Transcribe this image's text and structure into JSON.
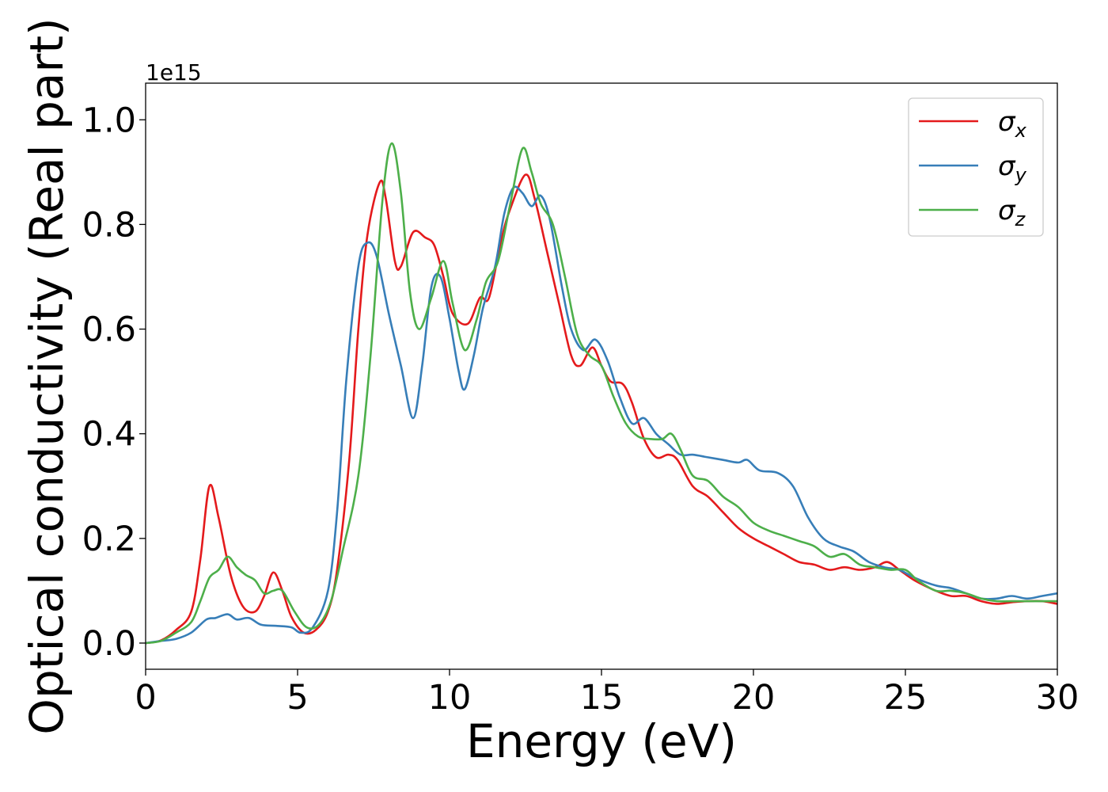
{
  "chart_data": {
    "type": "line",
    "title": "",
    "xlabel": "Energy (eV)",
    "ylabel": "Optical conductivity (Real part)",
    "offset_text": "1e15",
    "xlim": [
      0,
      30
    ],
    "ylim": [
      -0.05,
      1.07
    ],
    "x_ticks": [
      0,
      5,
      10,
      15,
      20,
      25,
      30
    ],
    "x_tick_labels": [
      "0",
      "5",
      "10",
      "15",
      "20",
      "25",
      "30"
    ],
    "y_ticks": [
      0.0,
      0.2,
      0.4,
      0.6,
      0.8,
      1.0
    ],
    "y_tick_labels": [
      "0.0",
      "0.2",
      "0.4",
      "0.6",
      "0.8",
      "1.0"
    ],
    "grid": false,
    "legend_position": "top-right",
    "series": [
      {
        "name": "σx",
        "legend_base": "σ",
        "legend_sub": "x",
        "color": "#e41a1c",
        "points": [
          [
            0,
            0
          ],
          [
            0.5,
            0.005
          ],
          [
            1.0,
            0.025
          ],
          [
            1.5,
            0.06
          ],
          [
            1.8,
            0.16
          ],
          [
            2.1,
            0.3
          ],
          [
            2.4,
            0.24
          ],
          [
            2.8,
            0.13
          ],
          [
            3.2,
            0.07
          ],
          [
            3.6,
            0.06
          ],
          [
            3.9,
            0.09
          ],
          [
            4.2,
            0.135
          ],
          [
            4.5,
            0.1
          ],
          [
            4.8,
            0.05
          ],
          [
            5.2,
            0.02
          ],
          [
            5.6,
            0.025
          ],
          [
            6.0,
            0.06
          ],
          [
            6.3,
            0.14
          ],
          [
            6.7,
            0.35
          ],
          [
            7.0,
            0.6
          ],
          [
            7.3,
            0.78
          ],
          [
            7.7,
            0.88
          ],
          [
            7.9,
            0.85
          ],
          [
            8.2,
            0.73
          ],
          [
            8.4,
            0.72
          ],
          [
            8.8,
            0.785
          ],
          [
            9.2,
            0.775
          ],
          [
            9.5,
            0.76
          ],
          [
            9.8,
            0.7
          ],
          [
            10.1,
            0.63
          ],
          [
            10.6,
            0.61
          ],
          [
            11.0,
            0.66
          ],
          [
            11.3,
            0.66
          ],
          [
            11.7,
            0.77
          ],
          [
            12.0,
            0.83
          ],
          [
            12.5,
            0.895
          ],
          [
            12.8,
            0.85
          ],
          [
            13.2,
            0.75
          ],
          [
            13.6,
            0.65
          ],
          [
            14.0,
            0.55
          ],
          [
            14.3,
            0.53
          ],
          [
            14.7,
            0.565
          ],
          [
            15.0,
            0.53
          ],
          [
            15.3,
            0.5
          ],
          [
            15.7,
            0.495
          ],
          [
            16.0,
            0.46
          ],
          [
            16.4,
            0.39
          ],
          [
            16.8,
            0.355
          ],
          [
            17.2,
            0.36
          ],
          [
            17.5,
            0.35
          ],
          [
            18.0,
            0.3
          ],
          [
            18.5,
            0.28
          ],
          [
            19.0,
            0.25
          ],
          [
            19.5,
            0.22
          ],
          [
            20.0,
            0.2
          ],
          [
            20.5,
            0.185
          ],
          [
            21.0,
            0.17
          ],
          [
            21.5,
            0.155
          ],
          [
            22.0,
            0.15
          ],
          [
            22.5,
            0.14
          ],
          [
            23.0,
            0.145
          ],
          [
            23.5,
            0.14
          ],
          [
            24.0,
            0.145
          ],
          [
            24.4,
            0.155
          ],
          [
            24.8,
            0.14
          ],
          [
            25.3,
            0.12
          ],
          [
            26.0,
            0.1
          ],
          [
            26.5,
            0.09
          ],
          [
            27.0,
            0.09
          ],
          [
            27.5,
            0.08
          ],
          [
            28.0,
            0.075
          ],
          [
            28.5,
            0.078
          ],
          [
            29.0,
            0.08
          ],
          [
            29.5,
            0.08
          ],
          [
            30.0,
            0.075
          ]
        ]
      },
      {
        "name": "σy",
        "legend_base": "σ",
        "legend_sub": "y",
        "color": "#377eb8",
        "points": [
          [
            0,
            0
          ],
          [
            0.5,
            0.004
          ],
          [
            1.0,
            0.008
          ],
          [
            1.5,
            0.02
          ],
          [
            2.0,
            0.045
          ],
          [
            2.3,
            0.048
          ],
          [
            2.7,
            0.055
          ],
          [
            3.0,
            0.045
          ],
          [
            3.4,
            0.048
          ],
          [
            3.8,
            0.035
          ],
          [
            4.3,
            0.033
          ],
          [
            4.8,
            0.03
          ],
          [
            5.1,
            0.02
          ],
          [
            5.5,
            0.03
          ],
          [
            6.0,
            0.1
          ],
          [
            6.3,
            0.25
          ],
          [
            6.6,
            0.5
          ],
          [
            7.0,
            0.72
          ],
          [
            7.3,
            0.765
          ],
          [
            7.6,
            0.74
          ],
          [
            8.0,
            0.63
          ],
          [
            8.4,
            0.53
          ],
          [
            8.8,
            0.43
          ],
          [
            9.1,
            0.53
          ],
          [
            9.4,
            0.68
          ],
          [
            9.7,
            0.7
          ],
          [
            10.0,
            0.62
          ],
          [
            10.3,
            0.52
          ],
          [
            10.5,
            0.485
          ],
          [
            10.8,
            0.55
          ],
          [
            11.1,
            0.64
          ],
          [
            11.5,
            0.72
          ],
          [
            11.8,
            0.82
          ],
          [
            12.1,
            0.87
          ],
          [
            12.4,
            0.86
          ],
          [
            12.7,
            0.835
          ],
          [
            13.0,
            0.855
          ],
          [
            13.3,
            0.81
          ],
          [
            13.7,
            0.68
          ],
          [
            14.0,
            0.6
          ],
          [
            14.4,
            0.56
          ],
          [
            14.8,
            0.58
          ],
          [
            15.2,
            0.54
          ],
          [
            15.6,
            0.47
          ],
          [
            16.0,
            0.42
          ],
          [
            16.4,
            0.43
          ],
          [
            16.8,
            0.4
          ],
          [
            17.2,
            0.38
          ],
          [
            17.6,
            0.36
          ],
          [
            18.0,
            0.36
          ],
          [
            18.5,
            0.355
          ],
          [
            19.0,
            0.35
          ],
          [
            19.5,
            0.345
          ],
          [
            19.8,
            0.35
          ],
          [
            20.2,
            0.33
          ],
          [
            20.8,
            0.325
          ],
          [
            21.3,
            0.3
          ],
          [
            21.8,
            0.24
          ],
          [
            22.3,
            0.2
          ],
          [
            22.8,
            0.185
          ],
          [
            23.3,
            0.175
          ],
          [
            23.8,
            0.155
          ],
          [
            24.3,
            0.145
          ],
          [
            24.8,
            0.14
          ],
          [
            25.3,
            0.125
          ],
          [
            26.0,
            0.11
          ],
          [
            26.5,
            0.105
          ],
          [
            27.0,
            0.095
          ],
          [
            27.5,
            0.085
          ],
          [
            28.0,
            0.085
          ],
          [
            28.5,
            0.09
          ],
          [
            29.0,
            0.085
          ],
          [
            29.5,
            0.09
          ],
          [
            30.0,
            0.095
          ]
        ]
      },
      {
        "name": "σz",
        "legend_base": "σ",
        "legend_sub": "z",
        "color": "#4daf4a",
        "points": [
          [
            0,
            0
          ],
          [
            0.5,
            0.004
          ],
          [
            1.0,
            0.02
          ],
          [
            1.5,
            0.04
          ],
          [
            1.8,
            0.08
          ],
          [
            2.1,
            0.125
          ],
          [
            2.4,
            0.14
          ],
          [
            2.7,
            0.165
          ],
          [
            3.0,
            0.145
          ],
          [
            3.3,
            0.13
          ],
          [
            3.6,
            0.12
          ],
          [
            3.9,
            0.095
          ],
          [
            4.2,
            0.1
          ],
          [
            4.5,
            0.1
          ],
          [
            4.9,
            0.06
          ],
          [
            5.3,
            0.03
          ],
          [
            5.7,
            0.035
          ],
          [
            6.1,
            0.08
          ],
          [
            6.5,
            0.18
          ],
          [
            7.0,
            0.32
          ],
          [
            7.4,
            0.55
          ],
          [
            7.8,
            0.85
          ],
          [
            8.1,
            0.955
          ],
          [
            8.4,
            0.86
          ],
          [
            8.7,
            0.67
          ],
          [
            9.0,
            0.6
          ],
          [
            9.4,
            0.66
          ],
          [
            9.8,
            0.73
          ],
          [
            10.1,
            0.65
          ],
          [
            10.5,
            0.56
          ],
          [
            10.9,
            0.62
          ],
          [
            11.2,
            0.69
          ],
          [
            11.6,
            0.73
          ],
          [
            12.0,
            0.84
          ],
          [
            12.4,
            0.945
          ],
          [
            12.7,
            0.9
          ],
          [
            13.0,
            0.84
          ],
          [
            13.4,
            0.8
          ],
          [
            13.8,
            0.7
          ],
          [
            14.2,
            0.59
          ],
          [
            14.6,
            0.55
          ],
          [
            15.0,
            0.53
          ],
          [
            15.4,
            0.47
          ],
          [
            15.8,
            0.42
          ],
          [
            16.2,
            0.395
          ],
          [
            16.6,
            0.39
          ],
          [
            17.0,
            0.39
          ],
          [
            17.3,
            0.4
          ],
          [
            17.6,
            0.37
          ],
          [
            18.0,
            0.32
          ],
          [
            18.5,
            0.31
          ],
          [
            19.0,
            0.28
          ],
          [
            19.5,
            0.26
          ],
          [
            20.0,
            0.23
          ],
          [
            20.5,
            0.215
          ],
          [
            21.0,
            0.205
          ],
          [
            21.5,
            0.195
          ],
          [
            22.0,
            0.185
          ],
          [
            22.5,
            0.165
          ],
          [
            23.0,
            0.17
          ],
          [
            23.5,
            0.15
          ],
          [
            24.0,
            0.145
          ],
          [
            24.5,
            0.14
          ],
          [
            25.0,
            0.14
          ],
          [
            25.4,
            0.12
          ],
          [
            26.0,
            0.1
          ],
          [
            26.5,
            0.1
          ],
          [
            27.0,
            0.095
          ],
          [
            27.5,
            0.085
          ],
          [
            28.0,
            0.08
          ],
          [
            28.5,
            0.08
          ],
          [
            29.0,
            0.08
          ],
          [
            29.5,
            0.08
          ],
          [
            30.0,
            0.08
          ]
        ]
      }
    ]
  }
}
